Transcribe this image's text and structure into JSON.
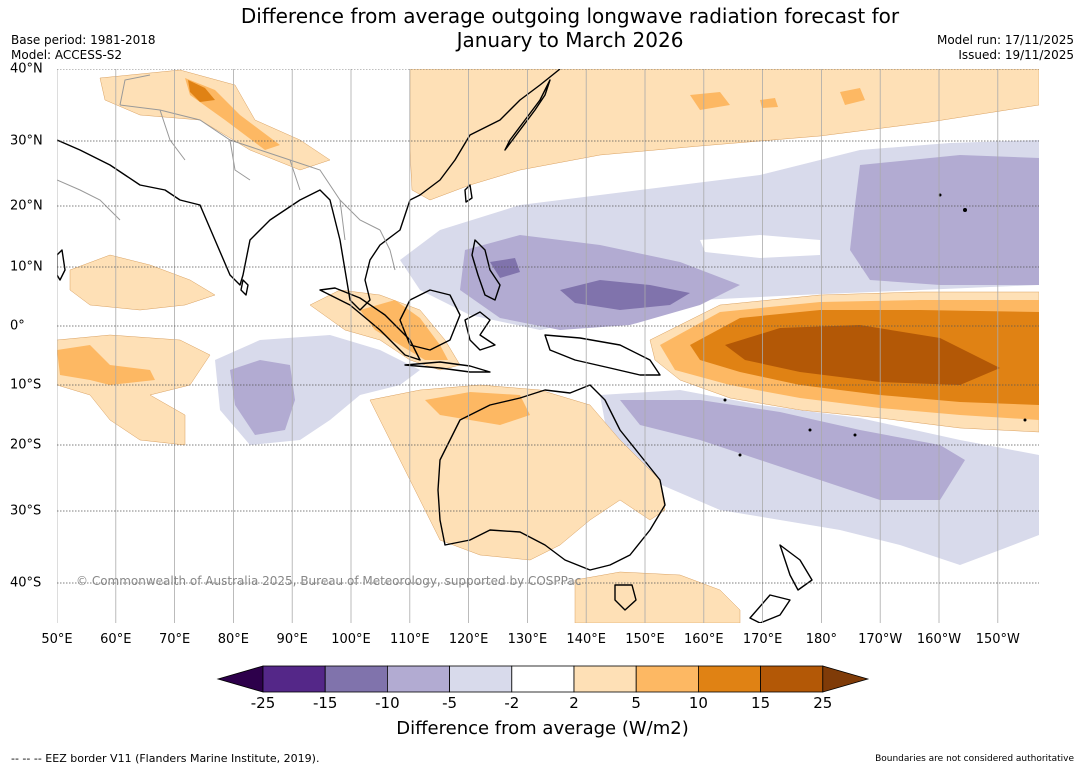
{
  "title": "Difference from average outgoing longwave radiation forecast for\nJanuary to March 2026",
  "meta_left": {
    "base_period": "Base period: 1981-2018",
    "model": "Model: ACCESS-S2"
  },
  "meta_right": {
    "model_run": "Model run: 17/11/2025",
    "issued": "Issued: 19/11/2025"
  },
  "map": {
    "lat_labels": [
      "40°N",
      "30°N",
      "20°N",
      "10°N",
      "0°",
      "10°S",
      "20°S",
      "30°S",
      "40°S"
    ],
    "lon_labels": [
      "50°E",
      "60°E",
      "70°E",
      "80°E",
      "90°E",
      "100°E",
      "110°E",
      "120°E",
      "130°E",
      "140°E",
      "150°E",
      "160°E",
      "170°E",
      "180°",
      "170°W",
      "160°W",
      "150°W"
    ],
    "copyright": "© Commonwealth of Australia 2025, Bureau of Meteorology, supported by COSPPac"
  },
  "colorbar": {
    "ticks": [
      "-25",
      "-15",
      "-10",
      "-5",
      "-2",
      "2",
      "5",
      "10",
      "15",
      "25"
    ],
    "colors": [
      "#2d004b",
      "#542788",
      "#8073ac",
      "#b2abd2",
      "#d8daeb",
      "#ffffff",
      "#fee0b6",
      "#fdb863",
      "#e08214",
      "#b35806",
      "#7f3b08"
    ],
    "label": "Difference from average (W/m2)"
  },
  "footer": {
    "eez_note": "--  --  -- EEZ border V11 (Flanders Marine Institute, 2019).",
    "disclaimer": "Boundaries are not considered authoritative"
  }
}
